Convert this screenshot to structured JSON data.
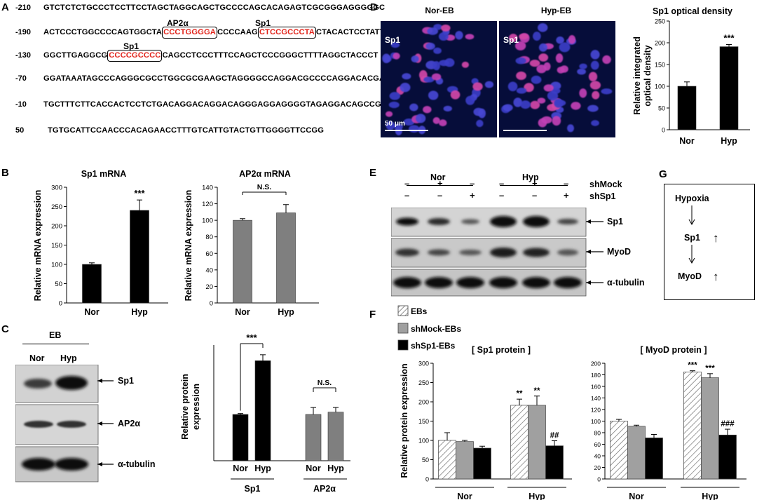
{
  "panels": {
    "A": "A",
    "B": "B",
    "C": "C",
    "D": "D",
    "E": "E",
    "F": "F",
    "G": "G"
  },
  "panel_a": {
    "site_labels": [
      {
        "text": "AP2α"
      },
      {
        "text": "Sp1"
      },
      {
        "text": "Sp1"
      }
    ],
    "rows": [
      {
        "pos": "-210",
        "segments": [
          {
            "text": "GTCTCTCTGCCCTCCTTCCTAGCTAGGCAGCTGCCCCAGCACAGAGTCGCGGGAGGGGGC",
            "site": false
          }
        ]
      },
      {
        "pos": "-190",
        "segments": [
          {
            "text": "ACTCCCTGGCCCCAGTGGCTA",
            "site": false
          },
          {
            "text": "CCCTGGGGA",
            "site": true
          },
          {
            "text": "CCCCAAG",
            "site": false
          },
          {
            "text": "CTCCGCCCTA",
            "site": true
          },
          {
            "text": "CTACACTCCTATT",
            "site": false
          }
        ]
      },
      {
        "pos": "-130",
        "segments": [
          {
            "text": "GGCTTGAGGCG",
            "site": false
          },
          {
            "text": "CCCCGCCCC",
            "site": true
          },
          {
            "text": "CAGCCTCCCTTTCCAGCTCCCGGGCTTTTAGGCTACCCT",
            "site": false
          }
        ]
      },
      {
        "pos": "-70",
        "segments": [
          {
            "text": "GGATAAATAGCCCAGGGCGCCTGGCGCGAAGCTAGGGGCCAGGACGCCCCAGGACACGAC",
            "site": false
          }
        ]
      },
      {
        "pos": "-10",
        "segments": [
          {
            "text": "TGCTTTCTTCACCACTCCTCTGACAGGACAGGACAGGGAGGAGGGGTAGAGGACAGCCGG",
            "site": false
          }
        ]
      },
      {
        "pos": "50",
        "segments": [
          {
            "text": "TGTGCATTCCAACCCACAGAACCTTTGTCATTGTACTGTTGGGGTTCCGG",
            "site": false
          }
        ]
      }
    ]
  },
  "panel_b": {
    "ylabel": "Relative mRNA expression",
    "charts": [
      {
        "title": "Sp1 mRNA",
        "categories": [
          "Nor",
          "Hyp"
        ]
      },
      {
        "title": "AP2α mRNA",
        "categories": [
          "Nor",
          "Hyp"
        ],
        "sig": "N.S."
      }
    ],
    "star": "***"
  },
  "panel_c": {
    "blot_header": "EB",
    "lanes": [
      "Nor",
      "Hyp"
    ],
    "bands": [
      "Sp1",
      "AP2α",
      "α-tubulin"
    ],
    "ylabel_line1": "Relative protein",
    "ylabel_line2": "expression",
    "groups": [
      "Sp1",
      "AP2α"
    ],
    "categories": [
      "Nor",
      "Hyp",
      "Nor",
      "Hyp"
    ],
    "sig_sp1": "***",
    "sig_ap2": "N.S."
  },
  "panel_d": {
    "images": [
      {
        "title": "Nor-EB",
        "label": "Sp1",
        "scale": "50 μm"
      },
      {
        "title": "Hyp-EB",
        "label": "Sp1"
      }
    ],
    "chart_title": "Sp1 optical density",
    "ylabel_line1": "Relative integrated",
    "ylabel_line2": "optical density",
    "star": "***"
  },
  "panel_e": {
    "groups": [
      "Nor",
      "Hyp"
    ],
    "rows": [
      {
        "label": "shMock",
        "marks": [
          "–",
          "+",
          "–",
          "–",
          "+",
          "–"
        ]
      },
      {
        "label": "shSp1",
        "marks": [
          "–",
          "–",
          "+",
          "–",
          "–",
          "+"
        ]
      }
    ],
    "bands": [
      "Sp1",
      "MyoD",
      "α-tubulin"
    ]
  },
  "panel_f": {
    "legend": [
      "EBs",
      "shMock-EBs",
      "shSp1-EBs"
    ],
    "ylabel": "Relative protein expression",
    "sig_sp1": [
      "**",
      "**",
      "##"
    ],
    "sig_myod": [
      "***",
      "***",
      "###"
    ],
    "groups": [
      "Nor",
      "Hyp"
    ]
  },
  "panel_g": {
    "items": [
      "Hypoxia",
      "Sp1",
      "MyoD"
    ],
    "up": "↑"
  },
  "chart_data": [
    {
      "type": "bar",
      "title": "Sp1 mRNA",
      "categories": [
        "Nor",
        "Hyp"
      ],
      "values": [
        100,
        240
      ],
      "errors": [
        4,
        27
      ],
      "ylabel": "Relative mRNA expression",
      "ylim": [
        0,
        300
      ],
      "yticks": [
        0,
        50,
        100,
        150,
        200,
        250,
        300
      ],
      "color": "#000000"
    },
    {
      "type": "bar",
      "title": "AP2α mRNA",
      "categories": [
        "Nor",
        "Hyp"
      ],
      "values": [
        100,
        109
      ],
      "errors": [
        2,
        10
      ],
      "ylabel": "Relative mRNA expression",
      "ylim": [
        0,
        140
      ],
      "yticks": [
        0,
        20,
        40,
        60,
        80,
        100,
        120,
        140
      ],
      "color": "#7f7f7f"
    },
    {
      "type": "bar",
      "title": "",
      "categories": [
        "Nor",
        "Hyp",
        "Nor",
        "Hyp"
      ],
      "groups": [
        "Sp1",
        "AP2α"
      ],
      "values": [
        100,
        216,
        100,
        105
      ],
      "errors": [
        2,
        13,
        15,
        10
      ],
      "ylabel": "Relative protein expression",
      "ylim": [
        0,
        250
      ],
      "colors": [
        "#000000",
        "#000000",
        "#7f7f7f",
        "#7f7f7f"
      ]
    },
    {
      "type": "bar",
      "title": "Sp1 optical density",
      "categories": [
        "Nor",
        "Hyp"
      ],
      "values": [
        100,
        191
      ],
      "errors": [
        10,
        5
      ],
      "ylabel": "Relative integrated optical density",
      "ylim": [
        0,
        250
      ],
      "yticks": [
        0,
        50,
        100,
        150,
        200,
        250
      ],
      "color": "#000000"
    },
    {
      "type": "bar",
      "title": "[ Sp1 protein ]",
      "categories": [
        "Nor",
        "Hyp"
      ],
      "ylabel": "Relative protein expression",
      "ylim": [
        0,
        300
      ],
      "yticks": [
        0,
        50,
        100,
        150,
        200,
        250,
        300
      ],
      "series": [
        {
          "name": "EBs",
          "values": [
            100,
            191
          ],
          "errors": [
            20,
            16
          ]
        },
        {
          "name": "shMock-EBs",
          "values": [
            97,
            191
          ],
          "errors": [
            3,
            24
          ]
        },
        {
          "name": "shSp1-EBs",
          "values": [
            80,
            86
          ],
          "errors": [
            5,
            13
          ]
        }
      ]
    },
    {
      "type": "bar",
      "title": "[ MyoD protein ]",
      "categories": [
        "Nor",
        "Hyp"
      ],
      "ylim": [
        0,
        200
      ],
      "yticks": [
        0,
        20,
        40,
        60,
        80,
        100,
        120,
        140,
        160,
        180,
        200
      ],
      "series": [
        {
          "name": "EBs",
          "values": [
            100,
            185
          ],
          "errors": [
            3,
            2
          ]
        },
        {
          "name": "shMock-EBs",
          "values": [
            91,
            175
          ],
          "errors": [
            2,
            7
          ]
        },
        {
          "name": "shSp1-EBs",
          "values": [
            71,
            76
          ],
          "errors": [
            6,
            10
          ]
        }
      ]
    }
  ]
}
